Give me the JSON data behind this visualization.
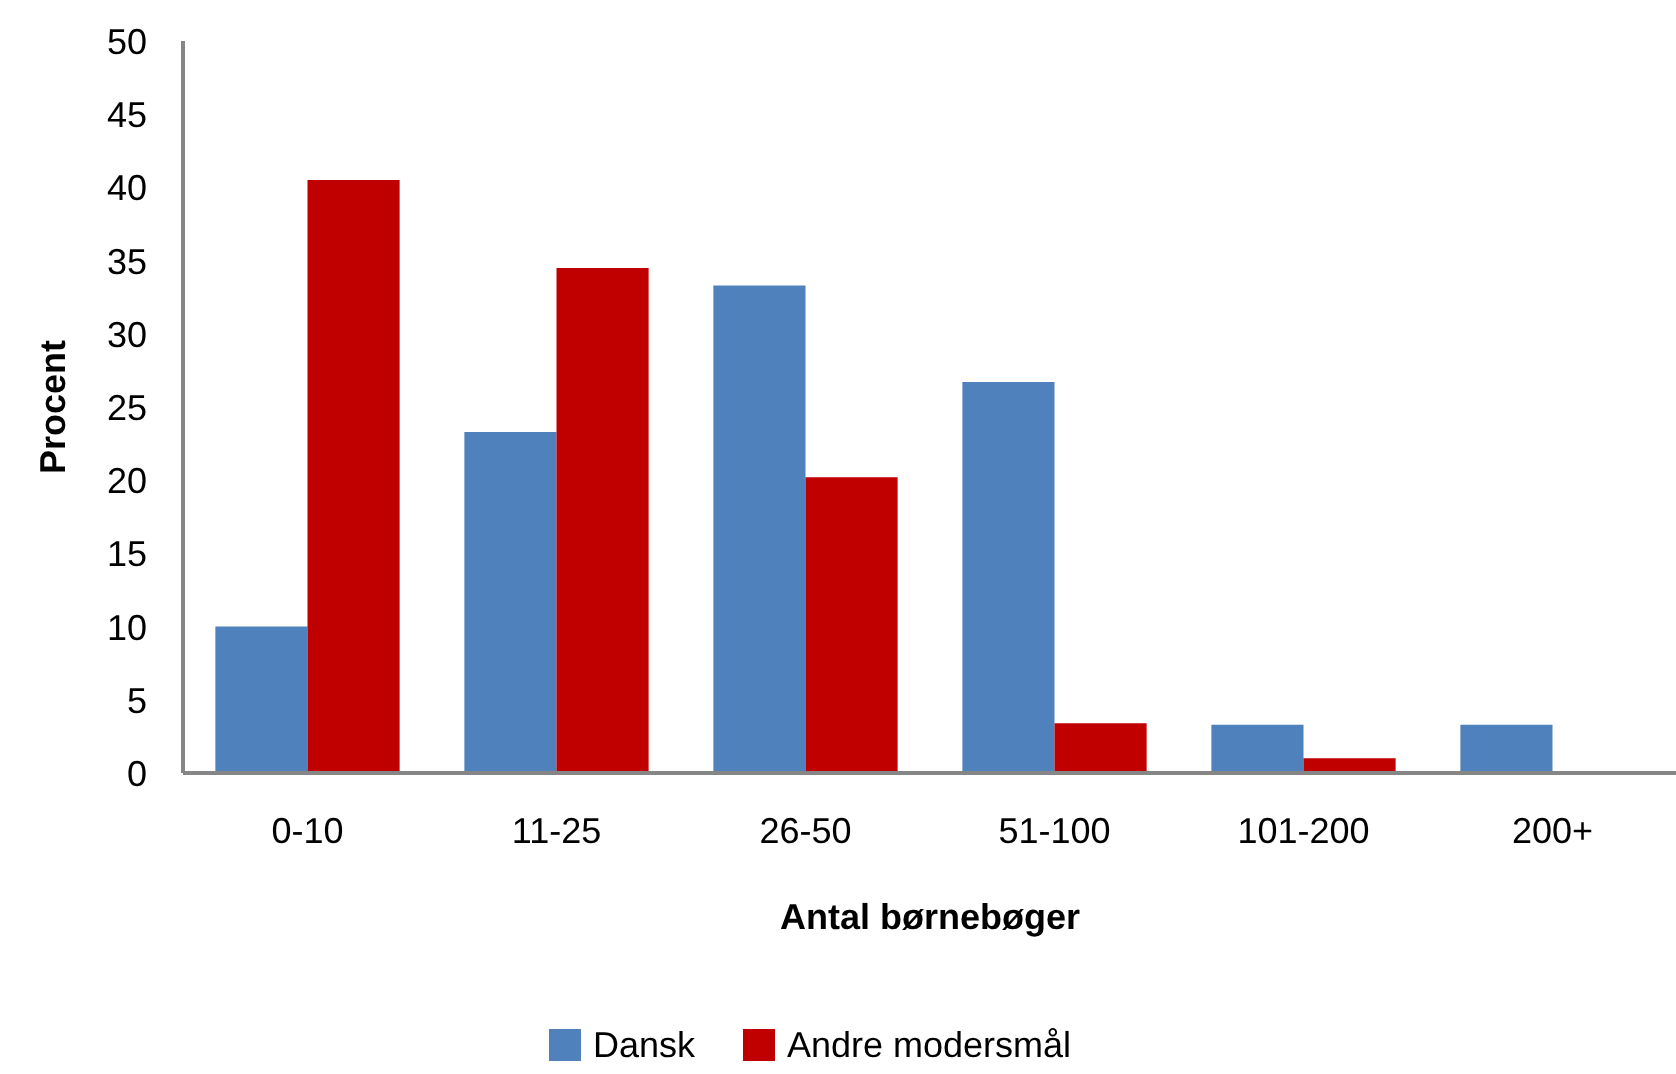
{
  "chart_data": {
    "type": "bar",
    "xlabel": "Antal børnebøger",
    "ylabel": "Procent",
    "categories": [
      "0-10",
      "11-25",
      "26-50",
      "51-100",
      "101-200",
      "200+"
    ],
    "series": [
      {
        "name": "Dansk",
        "color": "#4f81bd",
        "values": [
          10,
          23.3,
          33.3,
          26.7,
          3.3,
          3.3
        ]
      },
      {
        "name": "Andre modersmål",
        "color": "#c00000",
        "values": [
          40.5,
          34.5,
          20.2,
          3.4,
          1.0,
          null
        ]
      }
    ],
    "ylim": [
      0,
      50
    ],
    "yticks": [
      0,
      5,
      10,
      15,
      20,
      25,
      30,
      35,
      40,
      45,
      50
    ],
    "grid": false,
    "legend": "bottom"
  }
}
